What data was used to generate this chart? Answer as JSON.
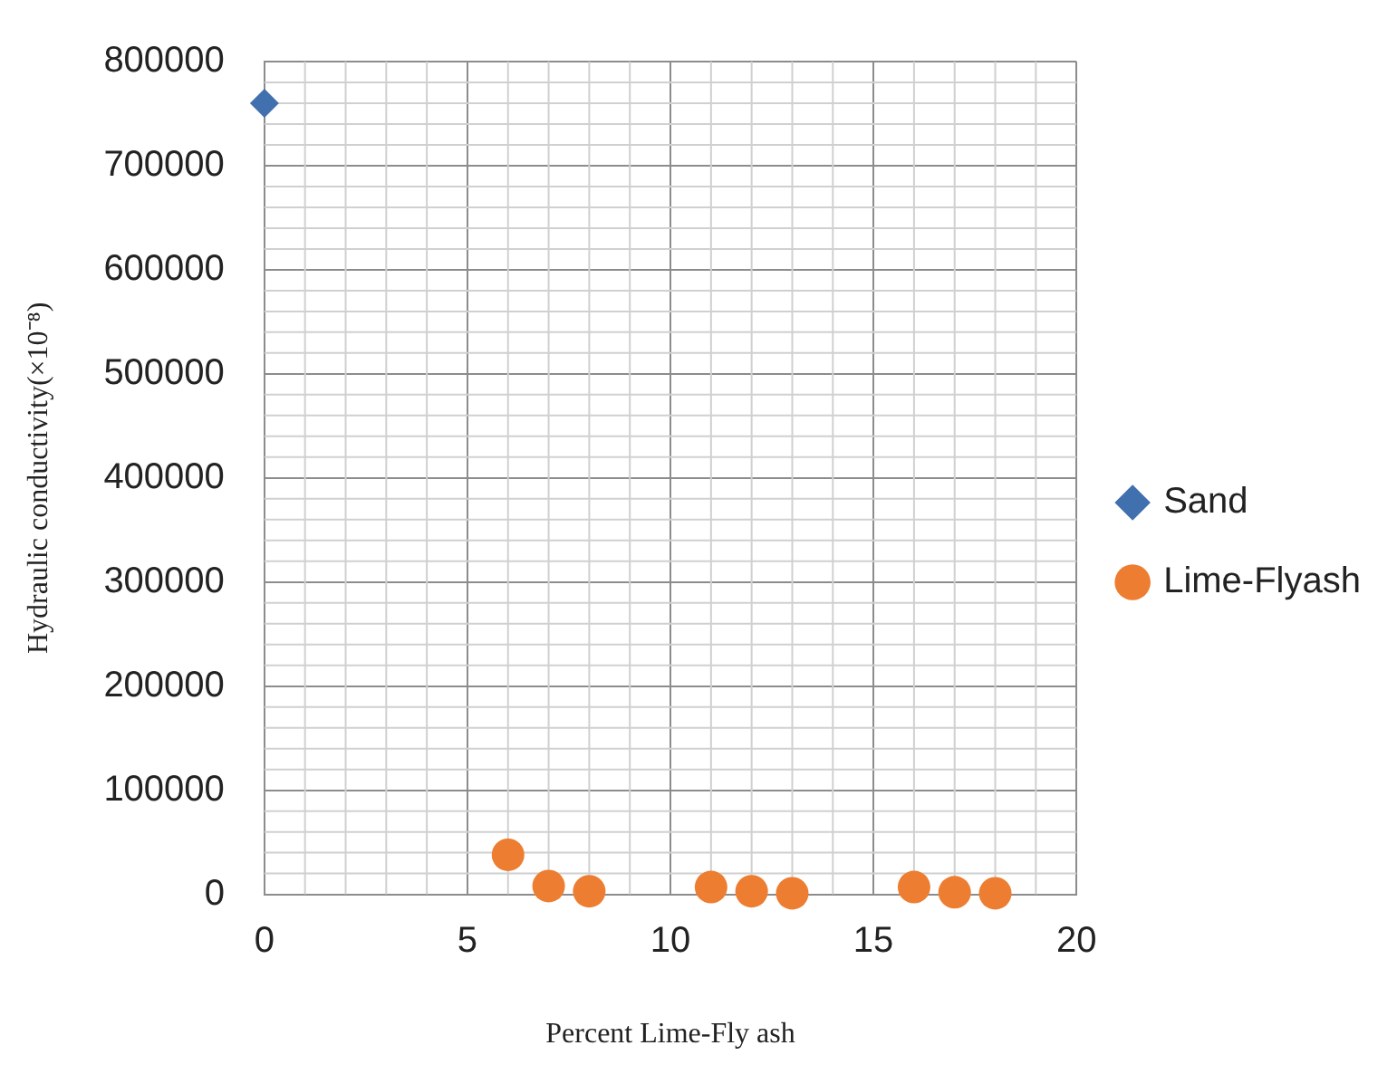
{
  "chart_data": {
    "type": "scatter",
    "xlabel": "Percent Lime-Fly ash",
    "ylabel": "Hydraulic conductivity(×10⁻⁸)",
    "series": [
      {
        "name": "Sand",
        "color": "#4170ae",
        "marker": "diamond",
        "x": [
          0
        ],
        "values": [
          760000
        ]
      },
      {
        "name": "Lime-Flyash",
        "color": "#ed7d31",
        "marker": "circle",
        "x": [
          6,
          7,
          8,
          11,
          12,
          13,
          16,
          17,
          18
        ],
        "values": [
          38000,
          8000,
          3000,
          7000,
          3000,
          1000,
          7000,
          2000,
          1000
        ]
      }
    ],
    "xlim": [
      0,
      20
    ],
    "xticks": [
      0,
      5,
      10,
      15,
      20
    ],
    "ylim": [
      0,
      800000
    ],
    "yticks": [
      0,
      100000,
      200000,
      300000,
      400000,
      500000,
      600000,
      700000,
      800000
    ],
    "grid": true,
    "legend": "right"
  }
}
